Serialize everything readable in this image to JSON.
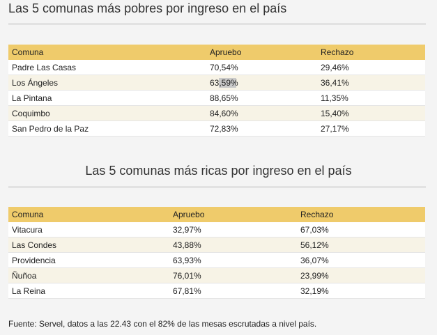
{
  "poor": {
    "title": "Las 5 comunas más pobres por ingreso en el país",
    "headers": [
      "Comuna",
      "Apruebo",
      "Rechazo"
    ],
    "rows": [
      [
        "Padre Las Casas",
        "70,54%",
        "29,46%"
      ],
      [
        "Los Ángeles",
        "63,59%",
        "36,41%"
      ],
      [
        "La Pintana",
        "88,65%",
        "11,35%"
      ],
      [
        "Coquimbo",
        "84,60%",
        "15,40%"
      ],
      [
        "San Pedro de la Paz",
        "72,83%",
        "27,17%"
      ]
    ]
  },
  "rich": {
    "title": "Las 5 comunas más ricas por ingreso en el país",
    "headers": [
      "Comuna",
      "Apruebo",
      "Rechazo"
    ],
    "rows": [
      [
        "Vitacura",
        "32,97%",
        "67,03%"
      ],
      [
        "Las Condes",
        "43,88%",
        "56,12%"
      ],
      [
        "Providencia",
        "63,93%",
        "36,07%"
      ],
      [
        "Ñuñoa",
        "76,01%",
        "23,99%"
      ],
      [
        "La Reina",
        "67,81%",
        "32,19%"
      ]
    ]
  },
  "footer": "Fuente: Servel, datos a las 22.43 con el 82% de las mesas escrutadas a nivel país."
}
